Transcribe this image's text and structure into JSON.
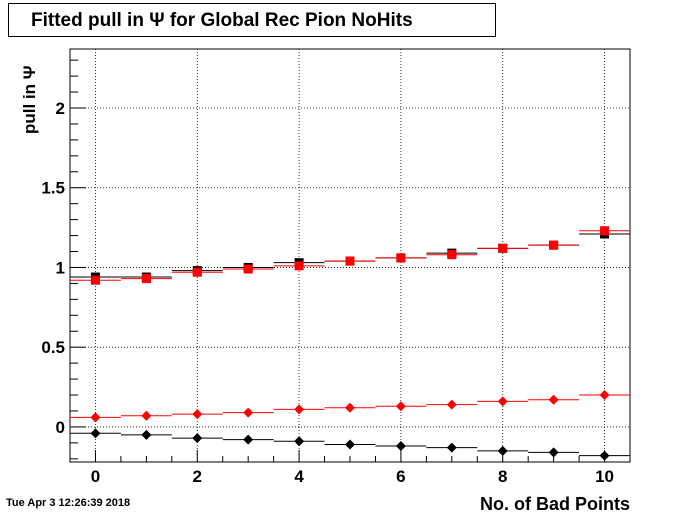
{
  "title": "Fitted pull in  Ψ  for Global Rec Pion NoHits",
  "timestamp": "Tue Apr  3 12:26:39 2018",
  "chart_data": {
    "type": "scatter",
    "title": "Fitted pull in  Ψ  for Global Rec Pion NoHits",
    "xlabel": "No. of Bad Points",
    "ylabel": "pull in  Ψ",
    "xlim": [
      -0.5,
      10.5
    ],
    "ylim": [
      -0.22,
      2.37
    ],
    "xticks": [
      0,
      2,
      4,
      6,
      8,
      10
    ],
    "yticks": [
      0,
      0.5,
      1,
      1.5,
      2
    ],
    "ytick_labels": [
      "0",
      "0.5",
      "1",
      "1.5",
      "2"
    ],
    "grid": true,
    "x": [
      0,
      1,
      2,
      3,
      4,
      5,
      6,
      7,
      8,
      9,
      10
    ],
    "series": [
      {
        "marker": "square",
        "color": "#000000",
        "values": [
          0.94,
          0.94,
          0.98,
          1.0,
          1.03,
          1.04,
          1.06,
          1.09,
          1.12,
          1.14,
          1.21
        ]
      },
      {
        "marker": "square",
        "color": "#ff0000",
        "values": [
          0.92,
          0.93,
          0.97,
          0.99,
          1.01,
          1.04,
          1.06,
          1.08,
          1.12,
          1.14,
          1.23
        ]
      },
      {
        "marker": "diamond",
        "color": "#ff0000",
        "values": [
          0.06,
          0.07,
          0.08,
          0.09,
          0.11,
          0.12,
          0.13,
          0.14,
          0.16,
          0.17,
          0.2
        ]
      },
      {
        "marker": "diamond",
        "color": "#000000",
        "values": [
          -0.04,
          -0.05,
          -0.07,
          -0.08,
          -0.09,
          -0.11,
          -0.12,
          -0.13,
          -0.15,
          -0.16,
          -0.18
        ]
      }
    ]
  }
}
